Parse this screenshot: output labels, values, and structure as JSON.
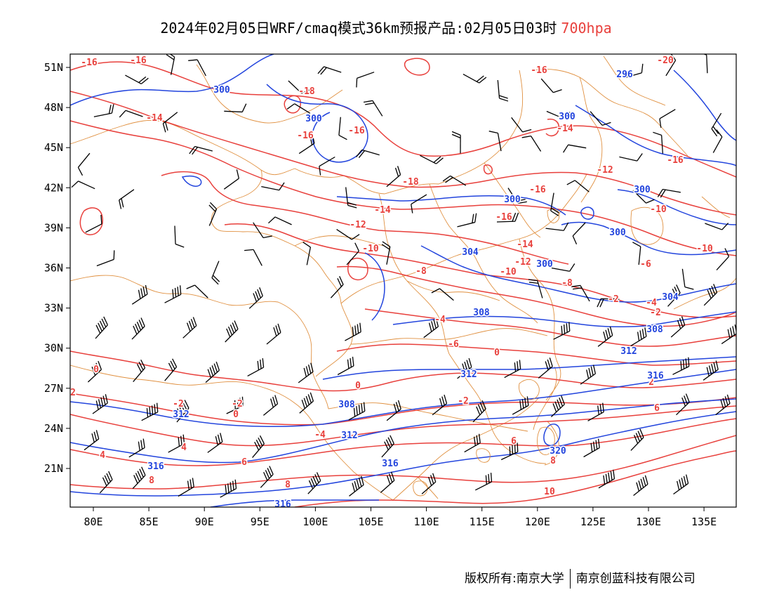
{
  "title": {
    "main": "2024年02月05日WRF/cmaq模式36km预报产品:02月05日03时",
    "level": "700hpa"
  },
  "footer": {
    "copyright": "版权所有:南京大学",
    "company": "南京创蓝科技有限公司"
  },
  "colors": {
    "temperature": "#e8403c",
    "height": "#2244dd",
    "boundary": "#e09040",
    "wind": "#000000"
  },
  "axes": {
    "lon_ticks": [
      "80E",
      "85E",
      "90E",
      "95E",
      "100E",
      "105E",
      "110E",
      "115E",
      "120E",
      "125E",
      "130E",
      "135E"
    ],
    "lat_ticks": [
      "51N",
      "48N",
      "45N",
      "42N",
      "39N",
      "36N",
      "33N",
      "30N",
      "27N",
      "24N",
      "21N"
    ]
  },
  "labels": {
    "temperature": [
      "-16",
      "-16",
      "-16",
      "-20",
      "-18",
      "-14",
      "-16",
      "-16",
      "-14",
      "-16",
      "-12",
      "-18",
      "-16",
      "-14",
      "-12",
      "-10",
      "-10",
      "-14",
      "-10",
      "-12",
      "-8",
      "-8",
      "-6",
      "-4",
      "-2",
      "-6",
      "-4",
      "-2",
      "0",
      "0",
      "0",
      "-2",
      "2",
      "-2",
      "-2",
      "0",
      "2",
      "4",
      "-4",
      "4",
      "6",
      "6",
      "6",
      "8",
      "8",
      "8",
      "10",
      "-16",
      "-10"
    ],
    "height": [
      "300",
      "300",
      "300",
      "296",
      "300",
      "300",
      "300",
      "304",
      "300",
      "304",
      "308",
      "308",
      "312",
      "312",
      "316",
      "308",
      "312",
      "316",
      "312",
      "316",
      "320",
      "316"
    ]
  },
  "icons": [
    "wind-barb-icon"
  ]
}
